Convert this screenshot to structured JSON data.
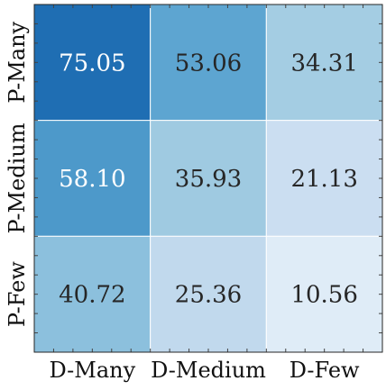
{
  "chart_data": {
    "type": "heatmap",
    "title": "",
    "xlabel": "",
    "ylabel": "",
    "x_categories": [
      "D-Many",
      "D-Medium",
      "D-Few"
    ],
    "y_categories": [
      "P-Many",
      "P-Medium",
      "P-Few"
    ],
    "values": [
      [
        75.05,
        53.06,
        34.31
      ],
      [
        58.1,
        35.93,
        21.13
      ],
      [
        40.72,
        25.36,
        10.56
      ]
    ],
    "value_labels": [
      [
        "75.05",
        "53.06",
        "34.31"
      ],
      [
        "58.10",
        "35.93",
        "21.13"
      ],
      [
        "40.72",
        "25.36",
        "10.56"
      ]
    ],
    "colormap": "Blues",
    "color_low": "#f7fbff",
    "color_high": "#08306b",
    "text_dark": "#262626",
    "text_light": "#ffffff",
    "grid": true,
    "legend": "none"
  }
}
